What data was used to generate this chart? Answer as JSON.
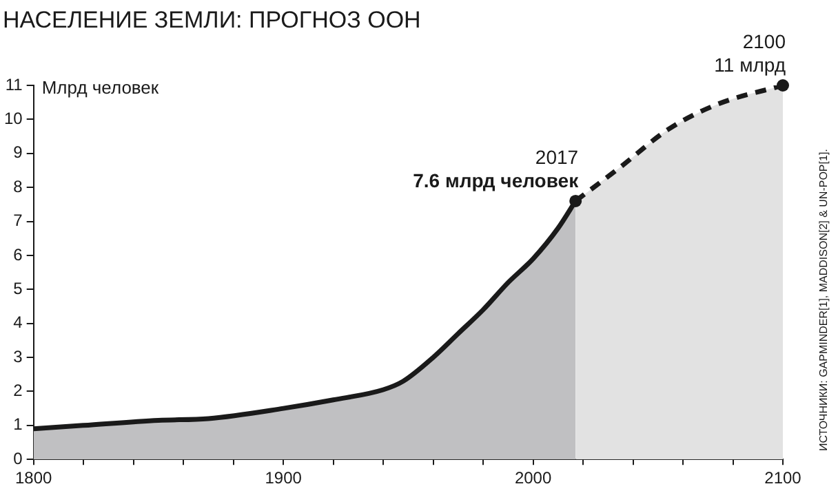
{
  "chart_data": {
    "type": "area",
    "title": "НАСЕЛЕНИЕ ЗЕМЛИ: ПРОГНОЗ ООН",
    "ylabel": "Млрд человек",
    "series": [
      {
        "x": [
          1800,
          1820,
          1850,
          1870,
          1900,
          1920,
          1940,
          1948,
          1960,
          1970,
          1980,
          1990,
          2000,
          2010,
          2017
        ],
        "values": [
          0.9,
          1.0,
          1.15,
          1.2,
          1.5,
          1.75,
          2.05,
          2.3,
          3.0,
          3.7,
          4.4,
          5.2,
          5.9,
          6.8,
          7.6
        ],
        "color": "#c0c0c2",
        "line_style": "solid"
      },
      {
        "x": [
          2017,
          2035,
          2054,
          2074,
          2100
        ],
        "values": [
          7.6,
          8.6,
          9.7,
          10.45,
          11
        ],
        "color": "#e2e2e2",
        "line_style": "dashed"
      }
    ],
    "annotations": [
      {
        "text": "2017\n7.6 млрд человек",
        "x": 2017,
        "y": 7.6
      },
      {
        "text": "2100\n11 млрд",
        "x": 2100,
        "y": 11
      },
      "ИСТОЧНИКИ: GAPMINDER[1], MADDISON[2] & UN-POP[1]."
    ],
    "xlim": [
      1800,
      2100
    ],
    "xticks": [
      1800,
      {
        "value": 1820,
        "label": null
      },
      {
        "value": 1840,
        "label": null
      },
      {
        "value": 1860,
        "label": null
      },
      {
        "value": 1880,
        "label": null
      },
      1900,
      {
        "value": 1920,
        "label": null
      },
      {
        "value": 1940,
        "label": null
      },
      {
        "value": 1960,
        "label": null
      },
      {
        "value": 1980,
        "label": null
      },
      2000,
      {
        "value": 2020,
        "label": null
      },
      {
        "value": 2040,
        "label": null
      },
      {
        "value": 2060,
        "label": null
      },
      {
        "value": 2080,
        "label": null
      },
      2100
    ],
    "ylim": [
      0,
      11
    ],
    "yticks": [
      0,
      1,
      2,
      3,
      4,
      5,
      6,
      7,
      8,
      9,
      10,
      11
    ],
    "grid": false,
    "legend": false,
    "marker": "none"
  }
}
